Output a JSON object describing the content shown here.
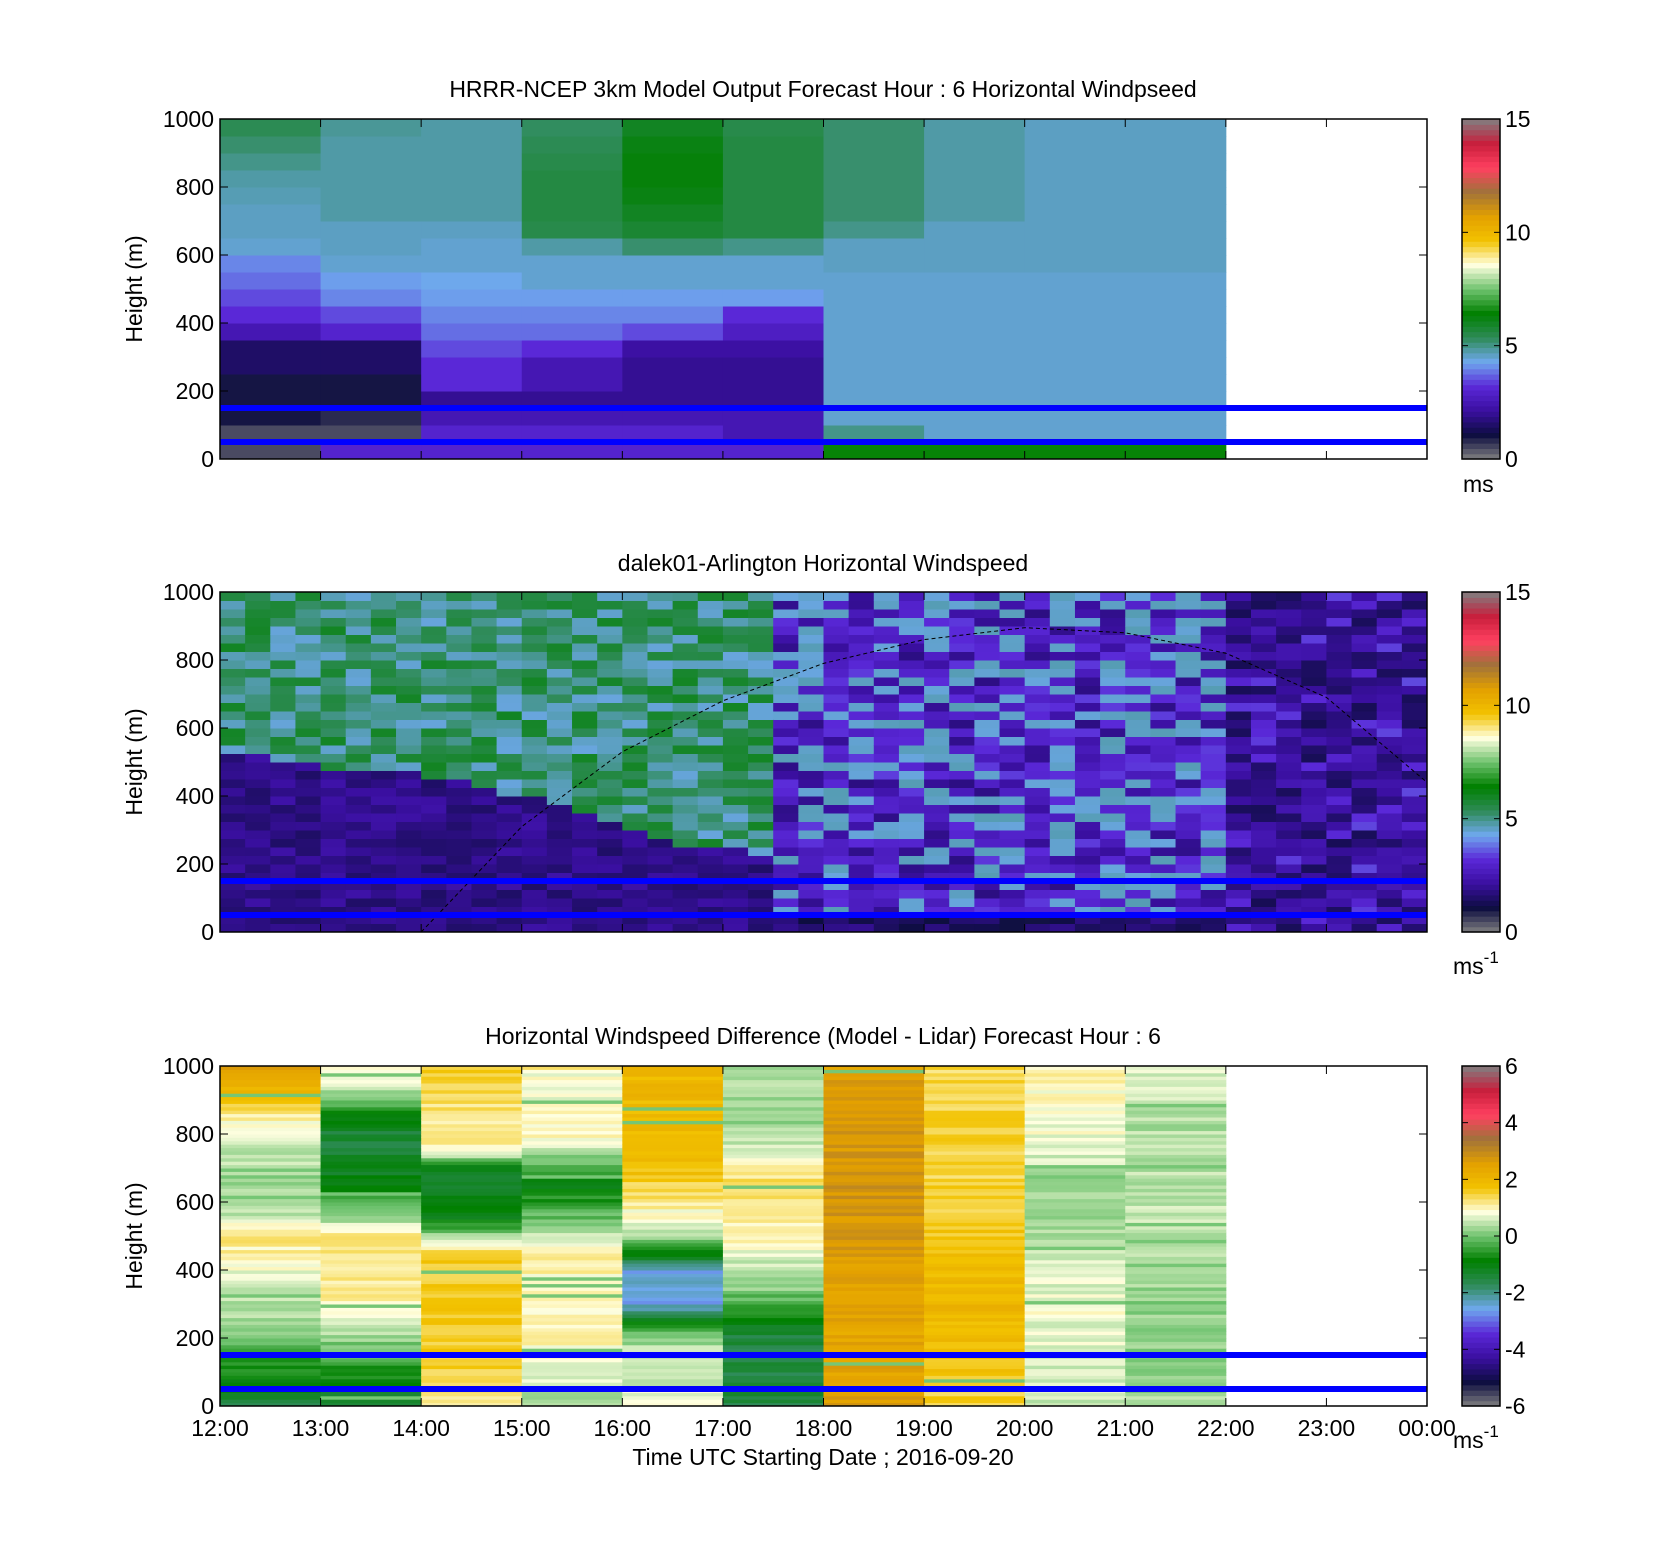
{
  "figure": {
    "xlabel": "Time UTC  Starting Date ; 2016-09-20",
    "x_tick_labels": [
      "12:00",
      "13:00",
      "14:00",
      "15:00",
      "16:00",
      "17:00",
      "18:00",
      "19:00",
      "20:00",
      "21:00",
      "22:00",
      "23:00",
      "00:00"
    ],
    "reference_lines": {
      "heights_m": [
        150,
        50
      ],
      "color": "#0000ff"
    },
    "colormap_stops": [
      "#808080",
      "#0d0d40",
      "#3a0fa0",
      "#5a28d8",
      "#6fa8ee",
      "#2e8b57",
      "#008000",
      "#6ec26e",
      "#ffffe0",
      "#f2c200",
      "#e3a000",
      "#a0723a",
      "#ff4060",
      "#c81e3c",
      "#808080"
    ]
  },
  "chart_data": [
    {
      "type": "heatmap",
      "title": "HRRR-NCEP 3km Model Output   Forecast Hour : 6 Horizontal Windpseed",
      "xlabel": "",
      "ylabel": "Height (m)",
      "x_range_hours_utc": [
        12,
        24
      ],
      "ylim": [
        0,
        1000
      ],
      "y_ticks": [
        0,
        200,
        400,
        600,
        800,
        1000
      ],
      "colorbar": {
        "range": [
          0,
          15
        ],
        "ticks": [
          0,
          5,
          10,
          15
        ],
        "unit": "ms"
      },
      "data_extent_hours_utc": [
        12,
        22
      ],
      "column_step_hours": 1,
      "row_step_m": 50,
      "grid_description": "10 hourly columns x 20 height rows (row 0 = 0-50 m)",
      "z": [
        [
          0.5,
          3,
          3,
          3,
          3,
          3,
          6.5,
          6.5,
          6.5,
          6.5
        ],
        [
          0.5,
          0.5,
          3,
          3,
          3,
          2.5,
          5,
          4.5,
          4.5,
          4.5
        ],
        [
          1,
          0.8,
          2.5,
          2.5,
          2.5,
          2.5,
          4.5,
          4.5,
          4.5,
          4.5
        ],
        [
          1,
          1,
          2,
          2,
          2,
          2,
          4.5,
          4.5,
          4.5,
          4.5
        ],
        [
          1,
          1,
          3.2,
          2.5,
          2,
          2,
          4.5,
          4.5,
          4.5,
          4.5
        ],
        [
          1.5,
          1.5,
          3.2,
          2.5,
          2,
          2,
          4.5,
          4.5,
          4.5,
          4.5
        ],
        [
          1.5,
          1.5,
          3.5,
          3.2,
          2.2,
          2.2,
          4.5,
          4.5,
          4.5,
          4.5
        ],
        [
          2.5,
          3,
          3.8,
          3.8,
          3.5,
          2.8,
          4.5,
          4.5,
          4.5,
          4.5
        ],
        [
          3.2,
          3.5,
          4,
          4,
          4,
          3.2,
          4.5,
          4.5,
          4.5,
          4.5
        ],
        [
          3.5,
          4,
          4.2,
          4.2,
          4.2,
          4.2,
          4.5,
          4.5,
          4.5,
          4.5
        ],
        [
          3.8,
          4.2,
          4.3,
          4.5,
          4.5,
          4.5,
          4.5,
          4.5,
          4.5,
          4.5
        ],
        [
          4,
          4.5,
          4.5,
          4.5,
          4.5,
          4.5,
          4.6,
          4.6,
          4.6,
          4.6
        ],
        [
          4.5,
          4.6,
          4.5,
          4.8,
          5.2,
          5,
          4.6,
          4.6,
          4.6,
          4.6
        ],
        [
          4.6,
          4.6,
          4.6,
          5.5,
          5.8,
          5.6,
          5,
          4.6,
          4.6,
          4.6
        ],
        [
          4.6,
          4.8,
          4.8,
          5.6,
          6,
          5.6,
          5.2,
          4.8,
          4.6,
          4.6
        ],
        [
          4.7,
          4.8,
          4.8,
          5.6,
          6.2,
          5.6,
          5.2,
          4.8,
          4.6,
          4.6
        ],
        [
          4.8,
          4.8,
          4.8,
          5.6,
          6.3,
          5.6,
          5.2,
          4.8,
          4.6,
          4.6
        ],
        [
          5,
          4.8,
          4.8,
          5.5,
          6.3,
          5.6,
          5.2,
          4.8,
          4.6,
          4.6
        ],
        [
          5.2,
          4.8,
          4.8,
          5.4,
          6.2,
          5.6,
          5.2,
          4.8,
          4.6,
          4.6
        ],
        [
          5.4,
          4.9,
          4.8,
          5.3,
          6,
          5.5,
          5.2,
          4.8,
          4.6,
          4.6
        ]
      ]
    },
    {
      "type": "heatmap",
      "title": "dalek01-Arlington  Horizontal Windspeed",
      "xlabel": "",
      "ylabel": "Height (m)",
      "x_range_hours_utc": [
        12,
        24
      ],
      "ylim": [
        0,
        1000
      ],
      "y_ticks": [
        0,
        200,
        400,
        600,
        800,
        1000
      ],
      "colorbar": {
        "range": [
          0,
          15
        ],
        "ticks": [
          0,
          5,
          10,
          15
        ],
        "unit": "ms",
        "unit_superscript": "-1"
      },
      "data_extent_hours_utc": [
        12,
        23.9
      ],
      "column_step_hours": 0.25,
      "boundary_layer_top_m": [
        [
          12,
          520
        ],
        [
          12.5,
          490
        ],
        [
          13,
          470
        ],
        [
          13.5,
          460
        ],
        [
          14,
          450
        ],
        [
          14.5,
          420
        ],
        [
          15,
          380
        ],
        [
          15.5,
          340
        ],
        [
          16,
          290
        ],
        [
          16.5,
          250
        ],
        [
          17,
          230
        ],
        [
          17.5,
          210
        ],
        [
          18,
          200
        ]
      ],
      "regime_change_hours_utc": [
        17.5,
        22
      ],
      "dashed_curve_points": [
        [
          14,
          0
        ],
        [
          15,
          310
        ],
        [
          16,
          530
        ],
        [
          17,
          680
        ],
        [
          18,
          790
        ],
        [
          19,
          860
        ],
        [
          20,
          895
        ],
        [
          21,
          880
        ],
        [
          22,
          820
        ],
        [
          23,
          690
        ],
        [
          24,
          440
        ]
      ]
    },
    {
      "type": "heatmap",
      "title": "Horizontal Windspeed Difference (Model - Lidar) Forecast Hour : 6",
      "xlabel": "Time UTC  Starting Date ; 2016-09-20",
      "ylabel": "Height (m)",
      "x_range_hours_utc": [
        12,
        24
      ],
      "ylim": [
        0,
        1000
      ],
      "y_ticks": [
        0,
        200,
        400,
        600,
        800,
        1000
      ],
      "colorbar": {
        "range": [
          -6,
          6
        ],
        "ticks": [
          -6,
          -4,
          -2,
          0,
          2,
          4,
          6
        ],
        "unit": "ms",
        "unit_superscript": "-1"
      },
      "data_extent_hours_utc": [
        12,
        22
      ],
      "column_base_difference": [
        0.8,
        0.3,
        1.6,
        1.0,
        1.5,
        0.6,
        2.7,
        1.6,
        0.4,
        0.4
      ],
      "column_profiles": [
        [
          [
            0,
            -1.5
          ],
          [
            250,
            0.3
          ],
          [
            500,
            1.2
          ],
          [
            600,
            0.2
          ],
          [
            800,
            0.6
          ],
          [
            950,
            2.2
          ],
          [
            1000,
            2.5
          ]
        ],
        [
          [
            0,
            -1.5
          ],
          [
            200,
            0.2
          ],
          [
            300,
            1.0
          ],
          [
            500,
            1.3
          ],
          [
            550,
            0.3
          ],
          [
            650,
            -1.0
          ],
          [
            800,
            -1.5
          ],
          [
            950,
            0.6
          ],
          [
            1000,
            0.8
          ]
        ],
        [
          [
            0,
            1.0
          ],
          [
            150,
            1.6
          ],
          [
            450,
            1.6
          ],
          [
            550,
            -1.0
          ],
          [
            700,
            -1.2
          ],
          [
            750,
            1.0
          ],
          [
            1000,
            1.5
          ]
        ],
        [
          [
            0,
            0.2
          ],
          [
            150,
            1.0
          ],
          [
            450,
            1.0
          ],
          [
            650,
            -1.0
          ],
          [
            800,
            1.1
          ],
          [
            950,
            0.6
          ],
          [
            1000,
            1.2
          ]
        ],
        [
          [
            0,
            0.8
          ],
          [
            200,
            0.3
          ],
          [
            300,
            -2.5
          ],
          [
            400,
            -2.5
          ],
          [
            500,
            0.5
          ],
          [
            700,
            1.8
          ],
          [
            1000,
            2.0
          ]
        ],
        [
          [
            0,
            -1.5
          ],
          [
            200,
            -1.5
          ],
          [
            350,
            0.2
          ],
          [
            500,
            1.0
          ],
          [
            650,
            1.4
          ],
          [
            800,
            0.3
          ],
          [
            1000,
            0.3
          ]
        ],
        [
          [
            0,
            2.6
          ],
          [
            200,
            2.4
          ],
          [
            600,
            2.8
          ],
          [
            800,
            2.7
          ],
          [
            1000,
            2.6
          ]
        ],
        [
          [
            0,
            1.5
          ],
          [
            300,
            2.0
          ],
          [
            600,
            1.5
          ],
          [
            1000,
            1.4
          ]
        ],
        [
          [
            0,
            0.5
          ],
          [
            300,
            0.8
          ],
          [
            600,
            0.2
          ],
          [
            800,
            0.8
          ],
          [
            1000,
            1.0
          ]
        ],
        [
          [
            0,
            0.3
          ],
          [
            300,
            0.2
          ],
          [
            600,
            0.5
          ],
          [
            800,
            0.4
          ],
          [
            1000,
            0.6
          ]
        ]
      ]
    }
  ]
}
